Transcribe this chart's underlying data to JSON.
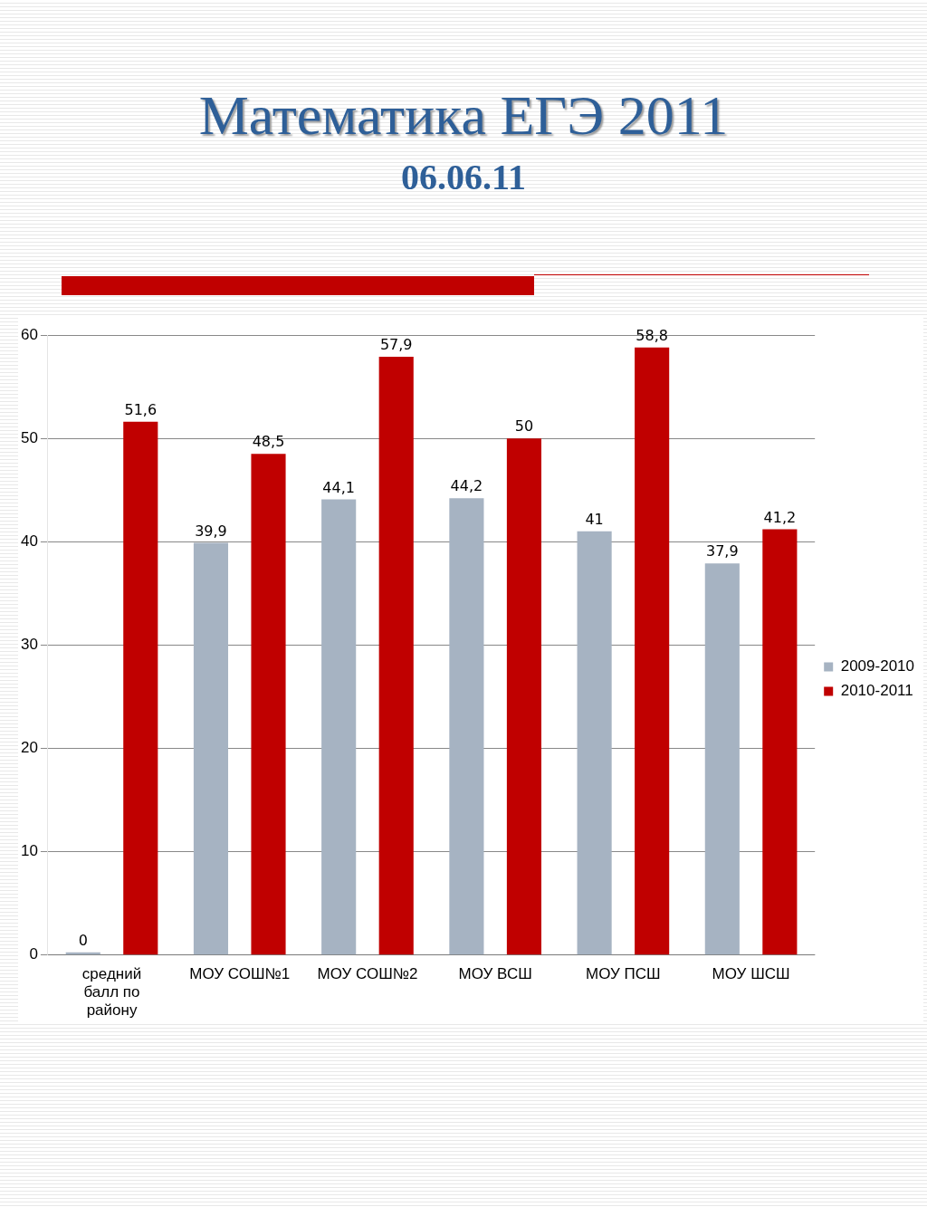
{
  "chart_data": {
    "type": "bar",
    "title": "Математика ЕГЭ 2011",
    "subtitle": "06.06.11",
    "categories": [
      "средний балл по району",
      "МОУ СОШ№1",
      "МОУ СОШ№2",
      "МОУ ВСШ",
      "МОУ ПСШ",
      "МОУ ШСШ"
    ],
    "series": [
      {
        "name": "2009-2010",
        "color": "#a6b3c2",
        "values": [
          0,
          39.9,
          44.1,
          44.2,
          41,
          37.9
        ],
        "value_labels": [
          "0",
          "39,9",
          "44,1",
          "44,2",
          "41",
          "37,9"
        ]
      },
      {
        "name": "2010-2011",
        "color": "#c00000",
        "values": [
          51.6,
          48.5,
          57.9,
          50,
          58.8,
          41.2
        ],
        "value_labels": [
          "51,6",
          "48,5",
          "57,9",
          "50",
          "58,8",
          "41,2"
        ]
      }
    ],
    "ylim": [
      0,
      60
    ],
    "yticks": [
      0,
      10,
      20,
      30,
      40,
      50,
      60
    ],
    "grid": "y",
    "legend": "right"
  }
}
